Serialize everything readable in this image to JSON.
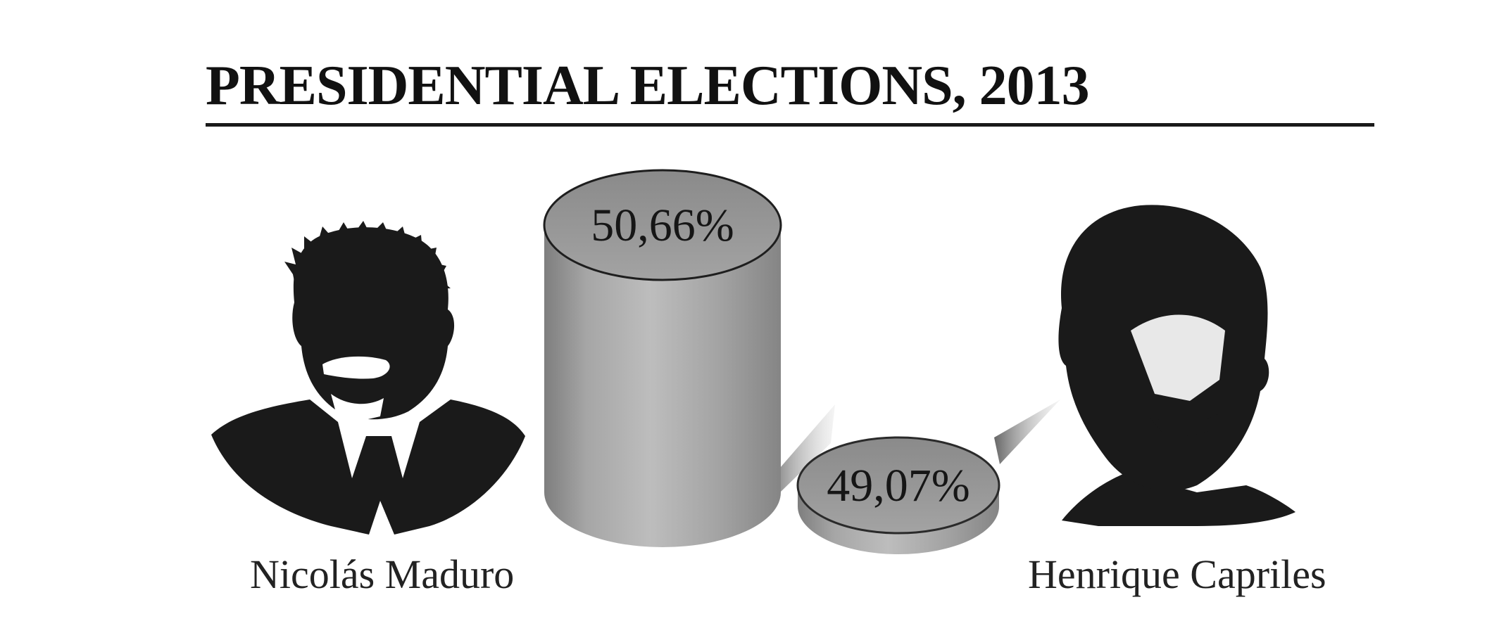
{
  "chart_data": {
    "type": "bar",
    "title": "PRESIDENTIAL ELECTIONS, 2013",
    "categories": [
      "Nicolás Maduro",
      "Henrique Capriles"
    ],
    "values": [
      50.66,
      49.07
    ],
    "value_labels": [
      "50,66%",
      "49,07%"
    ],
    "unit": "%",
    "style": "3d-cylinder",
    "xlabel": "",
    "ylabel": "",
    "grid": false,
    "legend": "none"
  },
  "colors": {
    "background": "#ffffff",
    "text": "#111111",
    "cylinder_light": "#b4b4b4",
    "cylinder_dark": "#7c7c7c",
    "cylinder_top": "#999999",
    "portrait": "#1a1a1a"
  },
  "portraits": [
    {
      "icon": "portrait-maduro-icon"
    },
    {
      "icon": "portrait-capriles-icon"
    }
  ]
}
